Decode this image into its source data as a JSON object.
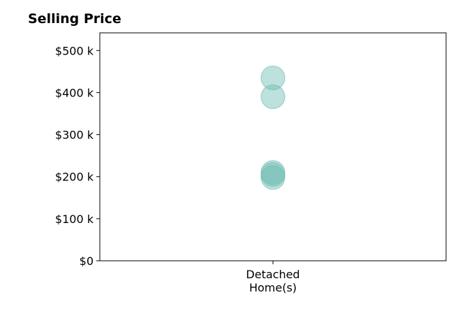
{
  "chart_data": {
    "type": "scatter",
    "title": "Selling Price",
    "xlabel": "",
    "ylabel": "",
    "categories": [
      "Detached Home(s)"
    ],
    "category_label_lines": [
      "Detached",
      "Home(s)"
    ],
    "y_ticks": [
      {
        "value": 0,
        "label": "$0"
      },
      {
        "value": 100000,
        "label": "$100 k"
      },
      {
        "value": 200000,
        "label": "$200 k"
      },
      {
        "value": 300000,
        "label": "$300 k"
      },
      {
        "value": 400000,
        "label": "$400 k"
      },
      {
        "value": 500000,
        "label": "$500 k"
      }
    ],
    "ylim": [
      0,
      542000
    ],
    "grid": false,
    "legend": "none",
    "marker_color": "#6dbdb2",
    "marker_opacity": 0.45,
    "series": [
      {
        "category": "Detached Home(s)",
        "values": [
          435000,
          390000,
          210000,
          205000,
          198000
        ]
      }
    ]
  }
}
